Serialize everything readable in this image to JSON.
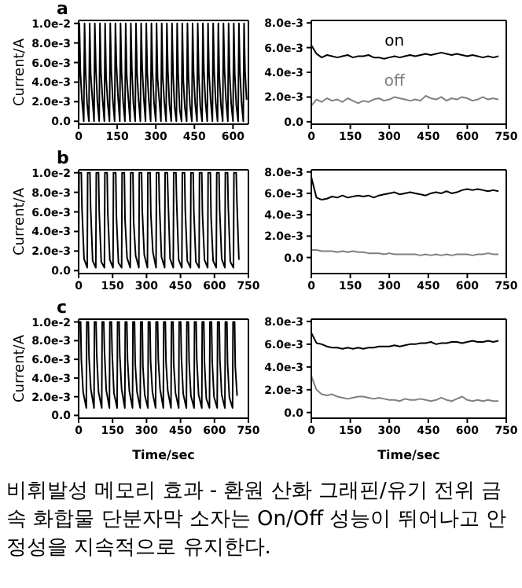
{
  "chart_data": [
    {
      "type": "line",
      "title": "a",
      "ylabel": "Current/A",
      "marker": "none",
      "line_style": "solid",
      "xlim": [
        0,
        660
      ],
      "xticks": [
        0,
        150,
        300,
        450,
        600
      ],
      "ylim": [
        -0.0003,
        0.0103
      ],
      "yticks": [
        {
          "value": 0,
          "label": "0.0"
        },
        {
          "value": 0.002,
          "label": "2.0e-3"
        },
        {
          "value": 0.004,
          "label": "4.0e-3"
        },
        {
          "value": 0.006,
          "label": "6.0e-3"
        },
        {
          "value": 0.008,
          "label": "8.0e-3"
        },
        {
          "value": 0.01,
          "label": "1.0e-2"
        }
      ],
      "series": [
        {
          "color": "#000000",
          "x": [
            0,
            3,
            7,
            13,
            20,
            23,
            27,
            33,
            40,
            43,
            47,
            53,
            60,
            63,
            67,
            73,
            80,
            83,
            87,
            93,
            100,
            103,
            107,
            113,
            120,
            123,
            127,
            133,
            140,
            143,
            147,
            153,
            160,
            163,
            167,
            173,
            180,
            183,
            187,
            193,
            200,
            203,
            207,
            213,
            220,
            223,
            227,
            233,
            240,
            243,
            247,
            253,
            260,
            263,
            267,
            273,
            280,
            283,
            287,
            293,
            300,
            303,
            307,
            313,
            320,
            323,
            327,
            333,
            340,
            343,
            347,
            353,
            360,
            363,
            367,
            373,
            380,
            383,
            387,
            393,
            400,
            403,
            407,
            413,
            420,
            423,
            427,
            433,
            440,
            443,
            447,
            453,
            460,
            463,
            467,
            473,
            480,
            483,
            487,
            493,
            500,
            503,
            507,
            513,
            520,
            523,
            527,
            533,
            540,
            543,
            547,
            553,
            560,
            563,
            567,
            573,
            580,
            583,
            587,
            593,
            600,
            603,
            607,
            613,
            620,
            623,
            627,
            633,
            640,
            643,
            647,
            653
          ],
          "values": [
            0,
            0.01,
            0.005,
            0.0022,
            0,
            0.01,
            0.0052,
            0.0018,
            0,
            0.01,
            0.0048,
            0.0025,
            0,
            0.01,
            0.0055,
            0.002,
            0,
            0.01,
            0.005,
            0.0023,
            0,
            0.01,
            0.0045,
            0.0019,
            0,
            0.01,
            0.0052,
            0.0021,
            0,
            0.01,
            0.0058,
            0.0026,
            0,
            0.01,
            0.005,
            0.002,
            0,
            0.01,
            0.0047,
            0.0024,
            0,
            0.01,
            0.0053,
            0.0018,
            0,
            0.01,
            0.005,
            0.0022,
            0,
            0.01,
            0.0056,
            0.0025,
            0,
            0.01,
            0.0049,
            0.0021,
            0,
            0.01,
            0.0051,
            0.0019,
            0,
            0.01,
            0.0044,
            0.0023,
            0,
            0.01,
            0.0046,
            0.002,
            0,
            0.01,
            0.0052,
            0.0017,
            0,
            0.01,
            0.005,
            0.0015,
            0,
            0.01,
            0.0048,
            0.0012,
            0,
            0.01,
            0.0042,
            0.0014,
            0,
            0.01,
            0.0045,
            0.0016,
            0,
            0.01,
            0.005,
            0.0018,
            0,
            0.01,
            0.0047,
            0.0015,
            0,
            0.01,
            0.0052,
            0.002,
            0,
            0.01,
            0.0049,
            0.0022,
            0,
            0.01,
            0.0051,
            0.0019,
            0,
            0.01,
            0.0046,
            0.0017,
            0,
            0.01,
            0.0053,
            0.0021,
            0,
            0.01,
            0.005,
            0.0018,
            0,
            0.01,
            0.0048,
            0.0016,
            0,
            0.01,
            0.0052,
            0.002,
            0,
            0.01,
            0.005,
            0.0022
          ]
        }
      ]
    },
    {
      "type": "line",
      "marker": "none",
      "line_style": "solid",
      "xlim": [
        0,
        750
      ],
      "xticks": [
        0,
        150,
        300,
        450,
        600,
        750
      ],
      "ylim": [
        -0.0002,
        0.0082
      ],
      "yticks": [
        {
          "value": 0,
          "label": "0.0"
        },
        {
          "value": 0.002,
          "label": "2.0e-3"
        },
        {
          "value": 0.004,
          "label": "4.0e-3"
        },
        {
          "value": 0.006,
          "label": "6.0e-3"
        },
        {
          "value": 0.008,
          "label": "8.0e-3"
        }
      ],
      "x": [
        0,
        20,
        40,
        60,
        80,
        100,
        120,
        140,
        160,
        180,
        200,
        220,
        240,
        260,
        280,
        300,
        320,
        340,
        360,
        380,
        400,
        420,
        440,
        460,
        480,
        500,
        520,
        540,
        560,
        580,
        600,
        620,
        640,
        660,
        680,
        700,
        720
      ],
      "series": [
        {
          "name": "on",
          "color": "#000000",
          "values": [
            0.0062,
            0.0055,
            0.0052,
            0.0054,
            0.0053,
            0.0052,
            0.0053,
            0.0054,
            0.0052,
            0.0053,
            0.0053,
            0.0054,
            0.0052,
            0.0052,
            0.0051,
            0.0052,
            0.0053,
            0.0052,
            0.0053,
            0.0054,
            0.0053,
            0.0054,
            0.0055,
            0.0054,
            0.0055,
            0.0056,
            0.0055,
            0.0054,
            0.0055,
            0.0054,
            0.0053,
            0.0054,
            0.0053,
            0.0052,
            0.0053,
            0.0052,
            0.0053
          ]
        },
        {
          "name": "off",
          "color": "#808080",
          "values": [
            0.0013,
            0.0018,
            0.0016,
            0.0019,
            0.0017,
            0.0018,
            0.0016,
            0.0019,
            0.0017,
            0.0015,
            0.0017,
            0.0016,
            0.0018,
            0.0019,
            0.0017,
            0.0018,
            0.002,
            0.0019,
            0.0018,
            0.0017,
            0.0018,
            0.0017,
            0.0021,
            0.0019,
            0.0018,
            0.002,
            0.0017,
            0.0019,
            0.0018,
            0.002,
            0.0019,
            0.0017,
            0.0018,
            0.002,
            0.0018,
            0.0019,
            0.0018
          ]
        }
      ]
    },
    {
      "type": "line",
      "title": "b",
      "ylabel": "Current/A",
      "marker": "none",
      "line_style": "solid",
      "xlim": [
        0,
        750
      ],
      "xticks": [
        0,
        150,
        300,
        450,
        600,
        750
      ],
      "ylim": [
        -0.0003,
        0.0103
      ],
      "yticks": [
        {
          "value": 0,
          "label": "0.0"
        },
        {
          "value": 0.002,
          "label": "2.0e-3"
        },
        {
          "value": 0.004,
          "label": "4.0e-3"
        },
        {
          "value": 0.006,
          "label": "6.0e-3"
        },
        {
          "value": 0.008,
          "label": "8.0e-3"
        },
        {
          "value": 0.01,
          "label": "1.0e-2"
        }
      ],
      "series": [
        {
          "color": "#000000",
          "x": [
            0,
            2,
            12,
            15,
            24,
            38,
            40,
            50,
            53,
            62,
            76,
            78,
            88,
            91,
            100,
            114,
            116,
            126,
            129,
            138,
            152,
            154,
            164,
            167,
            176,
            190,
            192,
            202,
            205,
            214,
            228,
            230,
            240,
            243,
            252,
            266,
            268,
            278,
            281,
            290,
            304,
            306,
            316,
            319,
            328,
            342,
            344,
            354,
            357,
            366,
            380,
            382,
            392,
            395,
            404,
            418,
            420,
            430,
            433,
            442,
            456,
            458,
            468,
            471,
            480,
            494,
            496,
            506,
            509,
            518,
            532,
            534,
            544,
            547,
            556,
            570,
            572,
            582,
            585,
            594,
            608,
            610,
            620,
            623,
            632,
            646,
            648,
            658,
            661,
            670,
            684,
            686,
            696,
            699,
            708
          ],
          "values": [
            0.0003,
            0.01,
            0.01,
            0.0063,
            0.0012,
            0.0003,
            0.01,
            0.01,
            0.0065,
            0.001,
            0.0003,
            0.01,
            0.01,
            0.006,
            0.0009,
            0.0003,
            0.01,
            0.01,
            0.0058,
            0.0011,
            0.0003,
            0.01,
            0.01,
            0.0055,
            0.0008,
            0.0003,
            0.01,
            0.01,
            0.0052,
            0.0013,
            0.0003,
            0.01,
            0.01,
            0.005,
            0.0015,
            0.0003,
            0.01,
            0.01,
            0.0062,
            0.0016,
            0.0003,
            0.01,
            0.01,
            0.0058,
            0.0019,
            0.0003,
            0.01,
            0.01,
            0.0068,
            0.0014,
            0.0003,
            0.01,
            0.01,
            0.0075,
            0.0012,
            0.0003,
            0.01,
            0.01,
            0.007,
            0.0011,
            0.0003,
            0.01,
            0.01,
            0.0062,
            0.001,
            0.0003,
            0.01,
            0.01,
            0.006,
            0.0009,
            0.0003,
            0.01,
            0.01,
            0.0058,
            0.0011,
            0.0003,
            0.01,
            0.01,
            0.0055,
            0.001,
            0.0003,
            0.01,
            0.01,
            0.0062,
            0.0012,
            0.0003,
            0.01,
            0.01,
            0.0065,
            0.0009,
            0.0003,
            0.01,
            0.01,
            0.0072,
            0.0011
          ]
        }
      ]
    },
    {
      "type": "line",
      "marker": "none",
      "line_style": "solid",
      "xlim": [
        0,
        750
      ],
      "xticks": [
        0,
        150,
        300,
        450,
        600,
        750
      ],
      "ylim": [
        -0.0015,
        0.0082
      ],
      "yticks": [
        {
          "value": 0,
          "label": "0.0"
        },
        {
          "value": 0.002,
          "label": "2.0e-3"
        },
        {
          "value": 0.004,
          "label": "4.0e-3"
        },
        {
          "value": 0.006,
          "label": "6.0e-3"
        },
        {
          "value": 0.008,
          "label": "8.0e-3"
        }
      ],
      "x": [
        0,
        20,
        40,
        60,
        80,
        100,
        120,
        140,
        160,
        180,
        200,
        220,
        240,
        260,
        280,
        300,
        320,
        340,
        360,
        380,
        400,
        420,
        440,
        460,
        480,
        500,
        520,
        540,
        560,
        580,
        600,
        620,
        640,
        660,
        680,
        700,
        720
      ],
      "series": [
        {
          "color": "#000000",
          "values": [
            0.0075,
            0.0056,
            0.0054,
            0.0055,
            0.0057,
            0.0056,
            0.0058,
            0.0056,
            0.0057,
            0.0058,
            0.0057,
            0.0058,
            0.0056,
            0.0058,
            0.0059,
            0.006,
            0.0061,
            0.0059,
            0.006,
            0.0061,
            0.006,
            0.0059,
            0.0058,
            0.006,
            0.0061,
            0.006,
            0.0062,
            0.006,
            0.0061,
            0.0063,
            0.0064,
            0.0063,
            0.0064,
            0.0063,
            0.0062,
            0.0063,
            0.0062
          ]
        },
        {
          "color": "#808080",
          "values": [
            0.0007,
            0.0007,
            0.0006,
            0.0006,
            0.0006,
            0.0005,
            0.0006,
            0.0005,
            0.0006,
            0.0005,
            0.0005,
            0.0004,
            0.0004,
            0.0004,
            0.0003,
            0.0004,
            0.0003,
            0.0003,
            0.0003,
            0.0003,
            0.0003,
            0.0002,
            0.0003,
            0.0002,
            0.0003,
            0.0002,
            0.0003,
            0.0002,
            0.0003,
            0.0003,
            0.0003,
            0.0002,
            0.0003,
            0.0003,
            0.0004,
            0.0003,
            0.0003
          ]
        }
      ]
    },
    {
      "type": "line",
      "title": "c",
      "ylabel": "Current/A",
      "xlabel": "Time/sec",
      "marker": "none",
      "line_style": "solid",
      "xlim": [
        0,
        750
      ],
      "xticks": [
        0,
        150,
        300,
        450,
        600,
        750
      ],
      "ylim": [
        -0.0003,
        0.0103
      ],
      "yticks": [
        {
          "value": 0,
          "label": "0.0"
        },
        {
          "value": 0.002,
          "label": "2.0e-3"
        },
        {
          "value": 0.004,
          "label": "4.0e-3"
        },
        {
          "value": 0.006,
          "label": "6.0e-3"
        },
        {
          "value": 0.008,
          "label": "8.0e-3"
        },
        {
          "value": 0.01,
          "label": "1.0e-2"
        }
      ],
      "series": [
        {
          "color": "#000000",
          "x": [
            0,
            2,
            9,
            12,
            20,
            34,
            36,
            43,
            46,
            54,
            68,
            70,
            77,
            80,
            88,
            102,
            104,
            111,
            114,
            122,
            136,
            138,
            145,
            148,
            156,
            170,
            172,
            179,
            182,
            190,
            204,
            206,
            213,
            216,
            224,
            238,
            240,
            247,
            250,
            258,
            272,
            274,
            281,
            284,
            292,
            306,
            308,
            315,
            318,
            326,
            340,
            342,
            349,
            352,
            360,
            374,
            376,
            383,
            386,
            394,
            408,
            410,
            417,
            420,
            428,
            442,
            444,
            451,
            454,
            462,
            476,
            478,
            485,
            488,
            496,
            510,
            512,
            519,
            522,
            530,
            544,
            546,
            553,
            556,
            564,
            578,
            580,
            587,
            590,
            598,
            612,
            614,
            621,
            624,
            632,
            646,
            648,
            655,
            658,
            666,
            680,
            682,
            689,
            692,
            700
          ],
          "values": [
            0.0008,
            0.01,
            0.01,
            0.006,
            0.0025,
            0.0008,
            0.01,
            0.01,
            0.0062,
            0.0028,
            0.0008,
            0.01,
            0.01,
            0.0065,
            0.0025,
            0.0008,
            0.01,
            0.01,
            0.007,
            0.0027,
            0.0008,
            0.01,
            0.01,
            0.0068,
            0.0024,
            0.0008,
            0.01,
            0.01,
            0.0064,
            0.0028,
            0.0008,
            0.01,
            0.01,
            0.006,
            0.0026,
            0.0008,
            0.01,
            0.01,
            0.0055,
            0.0025,
            0.0008,
            0.01,
            0.01,
            0.0052,
            0.0022,
            0.0008,
            0.01,
            0.01,
            0.0058,
            0.0025,
            0.0008,
            0.01,
            0.01,
            0.006,
            0.0028,
            0.0008,
            0.01,
            0.01,
            0.0057,
            0.0026,
            0.0008,
            0.01,
            0.01,
            0.0055,
            0.0024,
            0.0008,
            0.01,
            0.01,
            0.0062,
            0.0023,
            0.0008,
            0.01,
            0.01,
            0.0058,
            0.0021,
            0.0008,
            0.01,
            0.01,
            0.006,
            0.0022,
            0.0008,
            0.01,
            0.01,
            0.0056,
            0.0018,
            0.0008,
            0.01,
            0.01,
            0.0058,
            0.002,
            0.0008,
            0.01,
            0.01,
            0.006,
            0.0022,
            0.0008,
            0.01,
            0.01,
            0.0055,
            0.0019,
            0.0008,
            0.01,
            0.01,
            0.0052,
            0.0021
          ]
        }
      ]
    },
    {
      "type": "line",
      "xlabel": "Time/sec",
      "marker": "none",
      "line_style": "solid",
      "xlim": [
        0,
        750
      ],
      "xticks": [
        0,
        150,
        300,
        450,
        600,
        750
      ],
      "ylim": [
        -0.0005,
        0.0082
      ],
      "yticks": [
        {
          "value": 0,
          "label": "0.0"
        },
        {
          "value": 0.002,
          "label": "2.0e-3"
        },
        {
          "value": 0.004,
          "label": "4.0e-3"
        },
        {
          "value": 0.006,
          "label": "6.0e-3"
        },
        {
          "value": 0.008,
          "label": "8.0e-3"
        }
      ],
      "x": [
        0,
        20,
        40,
        60,
        80,
        100,
        120,
        140,
        160,
        180,
        200,
        220,
        240,
        260,
        280,
        300,
        320,
        340,
        360,
        380,
        400,
        420,
        440,
        460,
        480,
        500,
        520,
        540,
        560,
        580,
        600,
        620,
        640,
        660,
        680,
        700,
        720
      ],
      "series": [
        {
          "color": "#000000",
          "values": [
            0.007,
            0.0061,
            0.006,
            0.0058,
            0.0057,
            0.0057,
            0.0056,
            0.0057,
            0.0056,
            0.0057,
            0.0056,
            0.0057,
            0.0057,
            0.0058,
            0.0058,
            0.0058,
            0.0059,
            0.0058,
            0.0059,
            0.006,
            0.006,
            0.0061,
            0.0061,
            0.0062,
            0.006,
            0.0061,
            0.0061,
            0.0062,
            0.0062,
            0.0061,
            0.0062,
            0.0063,
            0.0062,
            0.0062,
            0.0063,
            0.0062,
            0.0063
          ]
        },
        {
          "color": "#808080",
          "values": [
            0.0032,
            0.002,
            0.0016,
            0.0015,
            0.0016,
            0.0014,
            0.0013,
            0.0012,
            0.0013,
            0.0014,
            0.0014,
            0.0013,
            0.0012,
            0.0013,
            0.0012,
            0.0011,
            0.0011,
            0.001,
            0.0012,
            0.0011,
            0.0011,
            0.0012,
            0.0011,
            0.001,
            0.0011,
            0.0013,
            0.0011,
            0.001,
            0.0012,
            0.0014,
            0.0011,
            0.001,
            0.0011,
            0.001,
            0.0011,
            0.001,
            0.001
          ]
        }
      ]
    },
    {
      "type": "other",
      "annotations": [
        "비휘발성 메모리 효과 - 환원 산화 그래핀/유기 전위 금속 화합물 단분자막 소자는 On/Off 성능이 뛰어나고 안정성을 지속적으로 유지한다."
      ]
    }
  ]
}
